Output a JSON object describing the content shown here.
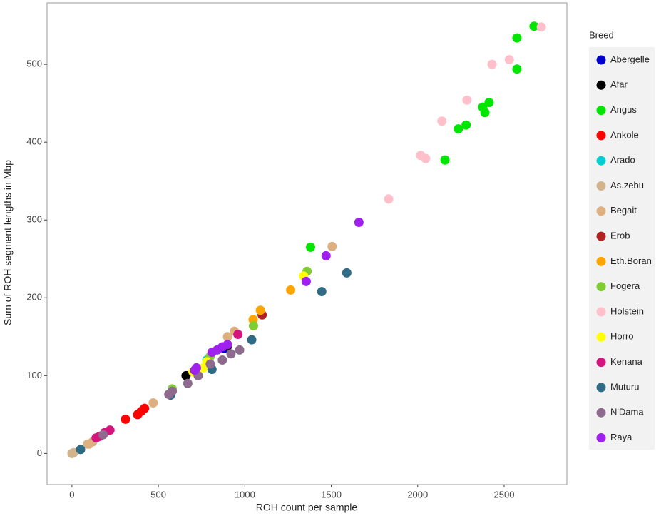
{
  "chart_data": {
    "type": "scatter",
    "x_label": "ROH count per sample",
    "y_label": "Sum of ROH segment lengths in Mbp",
    "legend_title": "Breed",
    "legend": "right",
    "grid": false,
    "xlim": [
      -144,
      2863
    ],
    "ylim": [
      -40,
      579
    ],
    "xticks": [
      0,
      500,
      1000,
      1500,
      2000,
      2500
    ],
    "yticks": [
      0,
      100,
      200,
      300,
      400,
      500
    ],
    "series": [
      {
        "name": "Abergelle",
        "color": "#0000cd",
        "x": [
          880
        ],
        "y": [
          135
        ]
      },
      {
        "name": "Afar",
        "color": "#000000",
        "x": [
          660,
          900
        ],
        "y": [
          100,
          138
        ]
      },
      {
        "name": "Angus",
        "color": "#00e600",
        "x": [
          2673,
          2574,
          2574,
          2413,
          2376,
          2389,
          2280,
          2235,
          2158,
          1380
        ],
        "y": [
          549,
          534,
          494,
          451,
          445,
          438,
          422,
          417,
          377,
          265
        ]
      },
      {
        "name": "Ankole",
        "color": "#ff0000",
        "x": [
          420,
          400,
          380,
          310
        ],
        "y": [
          58,
          54,
          50,
          44
        ]
      },
      {
        "name": "Arado",
        "color": "#00ced1",
        "x": [
          780
        ],
        "y": [
          120
        ]
      },
      {
        "name": "As.zebu",
        "color": "#d2b48c",
        "x": [
          0,
          10,
          90,
          120
        ],
        "y": [
          0,
          1,
          12,
          15
        ]
      },
      {
        "name": "Begait",
        "color": "#deb080",
        "x": [
          1505,
          940,
          900,
          470,
          100
        ],
        "y": [
          266,
          157,
          150,
          65,
          12
        ]
      },
      {
        "name": "Erob",
        "color": "#b22222",
        "x": [
          1100
        ],
        "y": [
          178
        ]
      },
      {
        "name": "Eth.Boran",
        "color": "#ffa500",
        "x": [
          1265,
          1090,
          1048
        ],
        "y": [
          210,
          184,
          172
        ]
      },
      {
        "name": "Fogera",
        "color": "#7fcd32",
        "x": [
          1360,
          1050,
          800,
          580
        ],
        "y": [
          234,
          164,
          125,
          83
        ]
      },
      {
        "name": "Holstein",
        "color": "#ffc0cb",
        "x": [
          2715,
          2530,
          2430,
          2285,
          2140,
          2017,
          2046,
          1832
        ],
        "y": [
          548,
          506,
          500,
          454,
          427,
          383,
          379,
          327
        ]
      },
      {
        "name": "Horro",
        "color": "#ffff00",
        "x": [
          1340,
          760,
          700,
          780
        ],
        "y": [
          228,
          110,
          105,
          118
        ]
      },
      {
        "name": "Kenana",
        "color": "#d4157e",
        "x": [
          960,
          220,
          190,
          160,
          140
        ],
        "y": [
          153,
          30,
          27,
          22,
          20
        ]
      },
      {
        "name": "Muturu",
        "color": "#2f6b84",
        "x": [
          1590,
          1445,
          1040,
          810,
          570,
          50
        ],
        "y": [
          232,
          208,
          146,
          108,
          75,
          5
        ]
      },
      {
        "name": "N'Dama",
        "color": "#8d6a8e",
        "x": [
          970,
          920,
          870,
          800,
          730,
          670,
          580,
          560,
          180
        ],
        "y": [
          133,
          128,
          120,
          115,
          100,
          90,
          80,
          76,
          24
        ]
      },
      {
        "name": "Raya",
        "color": "#a020f0",
        "x": [
          1660,
          1470,
          1355,
          900,
          870,
          840,
          810,
          720,
          710
        ],
        "y": [
          297,
          254,
          221,
          140,
          137,
          133,
          130,
          110,
          107
        ]
      }
    ]
  }
}
